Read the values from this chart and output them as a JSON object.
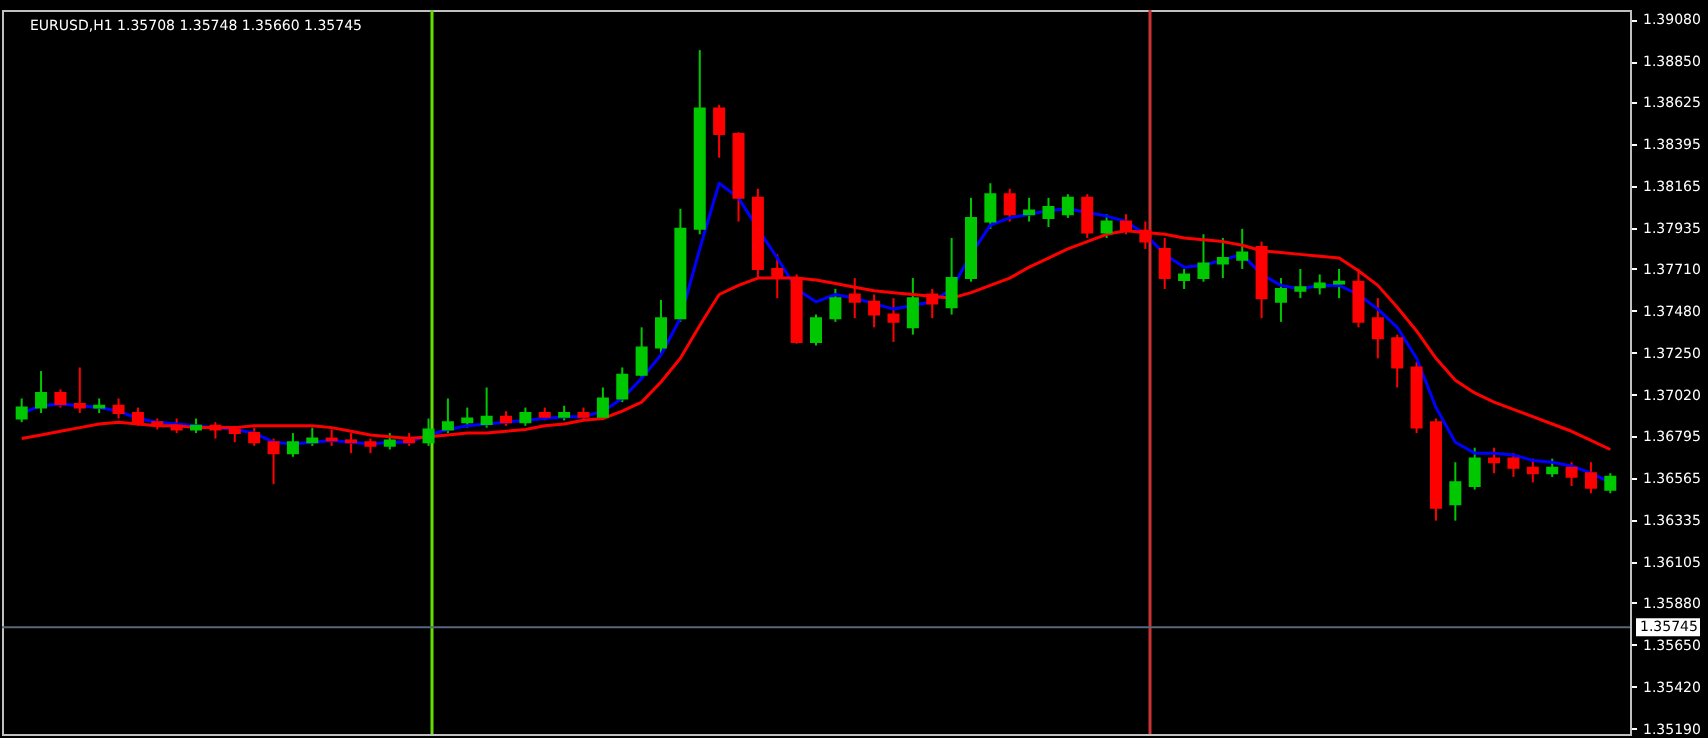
{
  "chart_data": {
    "type": "candlestick",
    "title": "EURUSD,H1 1.35708 1.35748 1.35660 1.35745",
    "categories": [
      null,
      null,
      null,
      null,
      null,
      null,
      null,
      null,
      null,
      null,
      null,
      null,
      null,
      null,
      null,
      null,
      null,
      null,
      null,
      null,
      null,
      null,
      null,
      null,
      null,
      null,
      null,
      null,
      null,
      null,
      null,
      null,
      null,
      null,
      null,
      null,
      null,
      null,
      null,
      null,
      null,
      null,
      null,
      null,
      null,
      null,
      null,
      null,
      null,
      null,
      null,
      null,
      null,
      null,
      null,
      null,
      null,
      null,
      null,
      null,
      null,
      null,
      null,
      null,
      null,
      null,
      null,
      null,
      null,
      null,
      null,
      null,
      null,
      null,
      null,
      null,
      null,
      null,
      null,
      null,
      null,
      null,
      null
    ],
    "ohlc": [
      [
        1.3689,
        1.37,
        1.3687,
        1.3695
      ],
      [
        1.3695,
        1.3715,
        1.3692,
        1.3703
      ],
      [
        1.3703,
        1.3705,
        1.3695,
        1.3697
      ],
      [
        1.3697,
        1.3717,
        1.3692,
        1.3695
      ],
      [
        1.3695,
        1.37,
        1.3692,
        1.3696
      ],
      [
        1.3696,
        1.37,
        1.3689,
        1.3692
      ],
      [
        1.3692,
        1.3695,
        1.3685,
        1.3687
      ],
      [
        1.3687,
        1.3689,
        1.3683,
        1.3685
      ],
      [
        1.3685,
        1.3689,
        1.3681,
        1.3683
      ],
      [
        1.3683,
        1.3689,
        1.3681,
        1.3685
      ],
      [
        1.3685,
        1.3687,
        1.3678,
        1.3683
      ],
      [
        1.3683,
        1.3685,
        1.3676,
        1.3681
      ],
      [
        1.3681,
        1.3684,
        1.3674,
        1.3676
      ],
      [
        1.3676,
        1.3678,
        1.3653,
        1.367
      ],
      [
        1.367,
        1.3681,
        1.3668,
        1.3676
      ],
      [
        1.3676,
        1.3684,
        1.3674,
        1.3678
      ],
      [
        1.3678,
        1.3683,
        1.3674,
        1.3677
      ],
      [
        1.3677,
        1.3681,
        1.367,
        1.3676
      ],
      [
        1.3676,
        1.3678,
        1.367,
        1.3674
      ],
      [
        1.3674,
        1.3681,
        1.3672,
        1.3677
      ],
      [
        1.3677,
        1.3681,
        1.3674,
        1.3676
      ],
      [
        1.3676,
        1.3689,
        1.3674,
        1.3683
      ],
      [
        1.3683,
        1.37,
        1.3681,
        1.3687
      ],
      [
        1.3687,
        1.3695,
        1.3684,
        1.3689
      ],
      [
        1.3686,
        1.3706,
        1.3684,
        1.369
      ],
      [
        1.369,
        1.3693,
        1.3685,
        1.3687
      ],
      [
        1.3687,
        1.3695,
        1.3685,
        1.3692
      ],
      [
        1.3692,
        1.3695,
        1.3688,
        1.369
      ],
      [
        1.369,
        1.3696,
        1.3688,
        1.3692
      ],
      [
        1.3692,
        1.3695,
        1.3688,
        1.369
      ],
      [
        1.369,
        1.3706,
        1.3689,
        1.37
      ],
      [
        1.37,
        1.3717,
        1.3698,
        1.3713
      ],
      [
        1.3713,
        1.3739,
        1.3711,
        1.3728
      ],
      [
        1.3728,
        1.3754,
        1.3724,
        1.3744
      ],
      [
        1.3744,
        1.3804,
        1.3742,
        1.3793
      ],
      [
        1.3793,
        1.3891,
        1.379,
        1.3859
      ],
      [
        1.3859,
        1.3861,
        1.3832,
        1.3845
      ],
      [
        1.3845,
        1.3846,
        1.3797,
        1.381
      ],
      [
        1.381,
        1.3815,
        1.3766,
        1.3771
      ],
      [
        1.3771,
        1.3779,
        1.3755,
        1.3766
      ],
      [
        1.3766,
        1.3768,
        1.373,
        1.3731
      ],
      [
        1.3731,
        1.3746,
        1.3729,
        1.3744
      ],
      [
        1.3744,
        1.376,
        1.3742,
        1.3755
      ],
      [
        1.3757,
        1.3766,
        1.3744,
        1.3753
      ],
      [
        1.3753,
        1.3757,
        1.3739,
        1.3746
      ],
      [
        1.3746,
        1.3755,
        1.3731,
        1.3742
      ],
      [
        1.3739,
        1.3766,
        1.3735,
        1.3755
      ],
      [
        1.3757,
        1.376,
        1.3744,
        1.3752
      ],
      [
        1.375,
        1.3788,
        1.3746,
        1.3766
      ],
      [
        1.3766,
        1.381,
        1.3764,
        1.3799
      ],
      [
        1.3797,
        1.3818,
        1.3793,
        1.3812
      ],
      [
        1.3812,
        1.3815,
        1.3797,
        1.3801
      ],
      [
        1.3801,
        1.381,
        1.3797,
        1.3803
      ],
      [
        1.3799,
        1.381,
        1.3794,
        1.3805
      ],
      [
        1.3801,
        1.3812,
        1.3799,
        1.381
      ],
      [
        1.381,
        1.3812,
        1.3788,
        1.3791
      ],
      [
        1.3791,
        1.3801,
        1.3788,
        1.3797
      ],
      [
        1.3797,
        1.3801,
        1.379,
        1.3792
      ],
      [
        1.3792,
        1.3797,
        1.3782,
        1.3786
      ],
      [
        1.3782,
        1.3788,
        1.376,
        1.3766
      ],
      [
        1.3765,
        1.3771,
        1.376,
        1.3768
      ],
      [
        1.3766,
        1.379,
        1.3764,
        1.3774
      ],
      [
        1.3774,
        1.3788,
        1.3766,
        1.3777
      ],
      [
        1.3776,
        1.3793,
        1.3771,
        1.378
      ],
      [
        1.3783,
        1.3786,
        1.3744,
        1.3755
      ],
      [
        1.3753,
        1.3766,
        1.3742,
        1.376
      ],
      [
        1.3759,
        1.3771,
        1.3755,
        1.3761
      ],
      [
        1.3761,
        1.3768,
        1.3757,
        1.3763
      ],
      [
        1.3763,
        1.3771,
        1.3755,
        1.3764
      ],
      [
        1.3764,
        1.3771,
        1.3739,
        1.3742
      ],
      [
        1.3744,
        1.3755,
        1.3722,
        1.3733
      ],
      [
        1.3733,
        1.3735,
        1.3706,
        1.3717
      ],
      [
        1.3717,
        1.372,
        1.3681,
        1.3684
      ],
      [
        1.3687,
        1.3689,
        1.3633,
        1.364
      ],
      [
        1.3642,
        1.3665,
        1.3633,
        1.3654
      ],
      [
        1.3652,
        1.3673,
        1.365,
        1.3667
      ],
      [
        1.3667,
        1.3673,
        1.3659,
        1.3665
      ],
      [
        1.3667,
        1.367,
        1.3657,
        1.3662
      ],
      [
        1.3662,
        1.3667,
        1.3654,
        1.3659
      ],
      [
        1.3659,
        1.3667,
        1.3657,
        1.3662
      ],
      [
        1.3662,
        1.3665,
        1.3652,
        1.3657
      ],
      [
        1.3659,
        1.3665,
        1.3648,
        1.3651
      ],
      [
        1.365,
        1.3659,
        1.3648,
        1.3657
      ]
    ],
    "colors": [
      "#00c800",
      "#00c800",
      "#ff0000",
      "#ff0000",
      "#00c800",
      "#ff0000",
      "#ff0000",
      "#ff0000",
      "#ff0000",
      "#00c800",
      "#ff0000",
      "#ff0000",
      "#ff0000",
      "#ff0000",
      "#00c800",
      "#00c800",
      "#ff0000",
      "#ff0000",
      "#ff0000",
      "#00c800",
      "#ff0000",
      "#00c800",
      "#00c800",
      "#00c800",
      "#00c800",
      "#ff0000",
      "#00c800",
      "#ff0000",
      "#00c800",
      "#ff0000",
      "#00c800",
      "#00c800",
      "#00c800",
      "#00c800",
      "#00c800",
      "#00c800",
      "#ff0000",
      "#ff0000",
      "#ff0000",
      "#ff0000",
      "#ff0000",
      "#00c800",
      "#00c800",
      "#ff0000",
      "#ff0000",
      "#ff0000",
      "#00c800",
      "#ff0000",
      "#00c800",
      "#00c800",
      "#00c800",
      "#ff0000",
      "#00c800",
      "#00c800",
      "#00c800",
      "#ff0000",
      "#00c800",
      "#ff0000",
      "#ff0000",
      "#ff0000",
      "#00c800",
      "#00c800",
      "#00c800",
      "#00c800",
      "#ff0000",
      "#00c800",
      "#00c800",
      "#00c800",
      "#00c800",
      "#ff0000",
      "#ff0000",
      "#ff0000",
      "#ff0000",
      "#ff0000",
      "#00c800",
      "#00c800",
      "#ff0000",
      "#ff0000",
      "#ff0000",
      "#00c800",
      "#ff0000",
      "#ff0000",
      "#00c800"
    ],
    "series": [
      {
        "type": "line",
        "color": "#0000ff",
        "values": [
          1.3692,
          1.3696,
          1.3697,
          1.3696,
          1.3695,
          1.3693,
          1.3689,
          1.3687,
          1.3686,
          1.3685,
          1.3684,
          1.3683,
          1.3681,
          1.3676,
          1.3675,
          1.3676,
          1.3677,
          1.3676,
          1.3675,
          1.3676,
          1.3676,
          1.368,
          1.3683,
          1.3685,
          1.3686,
          1.3687,
          1.3688,
          1.3689,
          1.369,
          1.369,
          1.3693,
          1.37,
          1.3711,
          1.3724,
          1.3744,
          1.3782,
          1.3818,
          1.381,
          1.3793,
          1.3777,
          1.376,
          1.3753,
          1.3757,
          1.3755,
          1.3752,
          1.3749,
          1.3751,
          1.3753,
          1.376,
          1.3779,
          1.3795,
          1.3799,
          1.3801,
          1.3803,
          1.3804,
          1.3802,
          1.38,
          1.3797,
          1.379,
          1.3779,
          1.3772,
          1.3773,
          1.3776,
          1.3779,
          1.3768,
          1.3762,
          1.376,
          1.3762,
          1.3762,
          1.3757,
          1.3749,
          1.3739,
          1.3722,
          1.3695,
          1.3676,
          1.367,
          1.367,
          1.3669,
          1.3666,
          1.3665,
          1.3663,
          1.3659,
          1.3654
        ]
      },
      {
        "type": "line",
        "color": "#ff0000",
        "values": [
          1.3678,
          1.368,
          1.3682,
          1.3684,
          1.3686,
          1.3687,
          1.3686,
          1.3685,
          1.3685,
          1.3684,
          1.3684,
          1.3684,
          1.3685,
          1.3685,
          1.3685,
          1.3685,
          1.3684,
          1.3682,
          1.368,
          1.3679,
          1.3678,
          1.3679,
          1.368,
          1.3681,
          1.3681,
          1.3682,
          1.3683,
          1.3685,
          1.3686,
          1.3688,
          1.3689,
          1.3693,
          1.3698,
          1.3709,
          1.3722,
          1.374,
          1.3757,
          1.3762,
          1.3766,
          1.3766,
          1.3766,
          1.3765,
          1.3763,
          1.3761,
          1.3759,
          1.3758,
          1.3757,
          1.3756,
          1.3755,
          1.3758,
          1.3762,
          1.3766,
          1.3772,
          1.3777,
          1.3782,
          1.3786,
          1.379,
          1.3792,
          1.3791,
          1.379,
          1.3788,
          1.3787,
          1.3786,
          1.3784,
          1.3781,
          1.378,
          1.3779,
          1.3778,
          1.3777,
          1.377,
          1.3762,
          1.375,
          1.3737,
          1.3722,
          1.371,
          1.3703,
          1.3698,
          1.3694,
          1.369,
          1.3686,
          1.3682,
          1.3677,
          1.3672
        ]
      }
    ],
    "ref_lines": [
      {
        "axis": "y",
        "value": 1.35745,
        "label": "1.35745",
        "color": "#56687a"
      }
    ],
    "ylim": [
      1.3516,
      1.3913
    ],
    "yticks": [
      {
        "value": 1.3908,
        "label": "1.39080"
      },
      {
        "value": 1.3885,
        "label": "1.38850"
      },
      {
        "value": 1.38625,
        "label": "1.38625"
      },
      {
        "value": 1.38395,
        "label": "1.38395"
      },
      {
        "value": 1.38165,
        "label": "1.38165"
      },
      {
        "value": 1.37935,
        "label": "1.37935"
      },
      {
        "value": 1.3771,
        "label": "1.37710"
      },
      {
        "value": 1.3748,
        "label": "1.37480"
      },
      {
        "value": 1.3725,
        "label": "1.37250"
      },
      {
        "value": 1.3702,
        "label": "1.37020"
      },
      {
        "value": 1.36795,
        "label": "1.36795"
      },
      {
        "value": 1.36565,
        "label": "1.36565"
      },
      {
        "value": 1.36335,
        "label": "1.36335"
      },
      {
        "value": 1.36105,
        "label": "1.36105"
      },
      {
        "value": 1.3588,
        "label": "1.35880"
      },
      {
        "value": 1.3565,
        "label": "1.35650"
      },
      {
        "value": 1.3542,
        "label": "1.35420"
      },
      {
        "value": 1.3519,
        "label": "1.35190"
      }
    ],
    "tick_labels": "y",
    "grid": false
  }
}
